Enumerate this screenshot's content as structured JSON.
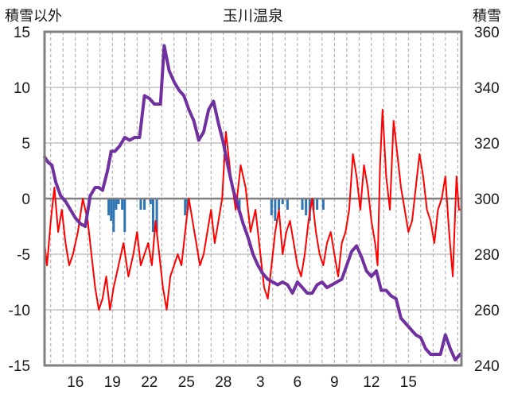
{
  "chart_data": {
    "type": "line",
    "title": "玉川温泉",
    "left_axis_label": "積雪以外",
    "right_axis_label": "積雪",
    "left_ylim": [
      -15,
      15
    ],
    "left_yticks": [
      15,
      10,
      5,
      0,
      -5,
      -10,
      -15
    ],
    "right_ylim": [
      240,
      360
    ],
    "right_yticks": [
      360,
      340,
      320,
      300,
      280,
      260,
      240
    ],
    "xlim": [
      13.5,
      47.3
    ],
    "x_tick_positions": [
      16,
      19,
      22,
      25,
      28,
      31,
      34,
      37,
      40,
      43,
      46
    ],
    "x_tick_labels": [
      "16",
      "19",
      "22",
      "25",
      "28",
      "3",
      "6",
      "9",
      "12",
      "15"
    ],
    "x_label_positions": [
      16,
      19,
      22,
      25,
      28,
      31,
      34,
      37,
      40,
      43
    ],
    "grid": {
      "horizontal": true,
      "vertical_dashed": true
    },
    "colors": {
      "temperature": "#ff0000",
      "snow_depth": "#7030a0",
      "precipitation": "#2e75b6",
      "frame": "#808080",
      "grid": "#a6a6a6"
    },
    "series": [
      {
        "axis": "left",
        "color": "#ff0000",
        "x": [
          13.5,
          13.7,
          14.0,
          14.3,
          14.6,
          14.9,
          15.2,
          15.5,
          15.8,
          16.2,
          16.6,
          17.0,
          17.3,
          17.6,
          17.9,
          18.2,
          18.5,
          18.8,
          19.1,
          19.5,
          19.9,
          20.3,
          20.7,
          21.0,
          21.3,
          21.6,
          21.9,
          22.2,
          22.5,
          22.8,
          23.1,
          23.4,
          23.7,
          24.0,
          24.3,
          24.6,
          24.9,
          25.2,
          25.5,
          25.8,
          26.1,
          26.4,
          26.7,
          27.0,
          27.3,
          27.6,
          27.9,
          28.2,
          28.6,
          29.0,
          29.4,
          29.8,
          30.2,
          30.6,
          31.0,
          31.3,
          31.6,
          31.9,
          32.2,
          32.5,
          32.8,
          33.1,
          33.4,
          33.7,
          34.0,
          34.3,
          34.6,
          34.9,
          35.2,
          35.5,
          35.8,
          36.1,
          36.4,
          36.7,
          37.0,
          37.3,
          37.6,
          37.9,
          38.2,
          38.5,
          38.8,
          39.1,
          39.4,
          39.7,
          40.0,
          40.3,
          40.5,
          40.7,
          40.9,
          41.2,
          41.5,
          41.8,
          42.1,
          42.4,
          42.7,
          43.0,
          43.3,
          43.6,
          43.9,
          44.2,
          44.5,
          44.8,
          45.1,
          45.4,
          45.7,
          46.0,
          46.3,
          46.6,
          46.9,
          47.1,
          47.2
        ],
        "values": [
          -4,
          -6,
          -2,
          1,
          -3,
          -1,
          -4,
          -6,
          -5,
          -3,
          0,
          -2,
          -5,
          -8,
          -10,
          -9,
          -7,
          -10,
          -8,
          -6,
          -4,
          -7,
          -5,
          -3,
          -6,
          -5,
          -4,
          -6,
          -2,
          -5,
          -8,
          -10,
          -7,
          -6,
          -5,
          -6,
          -3,
          0,
          -2,
          -4,
          -6,
          -5,
          -3,
          -1,
          -4,
          -2,
          0,
          6,
          2,
          -1,
          3,
          1,
          -3,
          -1,
          -5,
          -8,
          -9,
          -6,
          -3,
          -1,
          -5,
          -3,
          -2,
          -4,
          -6,
          -7,
          -5,
          -2,
          0,
          -3,
          -5,
          -6,
          -4,
          -3,
          -5,
          -7,
          -4,
          -3,
          -1,
          4,
          2,
          -1,
          3,
          1,
          -2,
          -4,
          -6,
          3,
          8,
          2,
          -1,
          7,
          4,
          1,
          -1,
          -3,
          -2,
          1,
          4,
          2,
          -1,
          -2,
          -4,
          -1,
          0,
          2,
          -3,
          -7,
          2,
          -1,
          -1
        ]
      },
      {
        "axis": "right",
        "color": "#7030a0",
        "x": [
          13.5,
          13.8,
          14.1,
          14.4,
          14.8,
          15.2,
          15.6,
          16.0,
          16.4,
          16.8,
          17.2,
          17.6,
          17.9,
          18.2,
          18.6,
          18.9,
          19.2,
          19.6,
          20.0,
          20.4,
          20.8,
          21.2,
          21.6,
          22.0,
          22.4,
          22.6,
          22.9,
          23.2,
          23.6,
          24.0,
          24.4,
          24.8,
          25.2,
          25.6,
          26.0,
          26.4,
          26.8,
          27.2,
          27.6,
          28.0,
          28.4,
          28.8,
          29.2,
          29.6,
          30.0,
          30.4,
          30.8,
          31.2,
          31.6,
          32.0,
          32.4,
          32.8,
          33.2,
          33.6,
          34.0,
          34.4,
          34.8,
          35.2,
          35.6,
          36.0,
          36.4,
          36.8,
          37.2,
          37.6,
          38.0,
          38.4,
          38.8,
          39.2,
          39.6,
          40.0,
          40.4,
          40.8,
          41.2,
          41.6,
          42.0,
          42.4,
          42.8,
          43.2,
          43.6,
          44.0,
          44.4,
          44.8,
          45.2,
          45.6,
          46.0,
          46.4,
          46.8,
          47.2
        ],
        "values": [
          315,
          313,
          312,
          306,
          301,
          299,
          296,
          293,
          291,
          290,
          301,
          304,
          304,
          303,
          310,
          317,
          317,
          319,
          322,
          321,
          322,
          322,
          337,
          336,
          334,
          334,
          334,
          355,
          346,
          342,
          339,
          337,
          332,
          328,
          321,
          324,
          332,
          335,
          327,
          320,
          311,
          303,
          297,
          291,
          286,
          280,
          276,
          273,
          271,
          270,
          269,
          270,
          269,
          266,
          270,
          268,
          266,
          266,
          269,
          270,
          268,
          269,
          270,
          271,
          276,
          281,
          283,
          279,
          274,
          272,
          274,
          267,
          267,
          265,
          264,
          257,
          255,
          253,
          251,
          250,
          246,
          244,
          244,
          244,
          251,
          246,
          242,
          244
        ]
      },
      {
        "axis": "left",
        "type": "bar",
        "color": "#2e75b6",
        "x": [
          18.7,
          18.9,
          19.1,
          19.3,
          19.5,
          19.8,
          20.0,
          21.3,
          21.6,
          22.1,
          22.3,
          22.6,
          24.9,
          25.1,
          29.3,
          31.9,
          32.2,
          32.5,
          32.8,
          33.2,
          34.4,
          34.7,
          35.0,
          35.3,
          35.6,
          36.1
        ],
        "values": [
          -1.5,
          -2,
          -3,
          -1,
          -0.5,
          -1,
          -3,
          -1,
          -1,
          -0.5,
          -3,
          -3,
          -1.5,
          -1,
          -1,
          -1.5,
          -2,
          -1,
          -0.5,
          -1,
          -1,
          -1.5,
          -2,
          -1,
          -1,
          -1
        ]
      }
    ]
  }
}
